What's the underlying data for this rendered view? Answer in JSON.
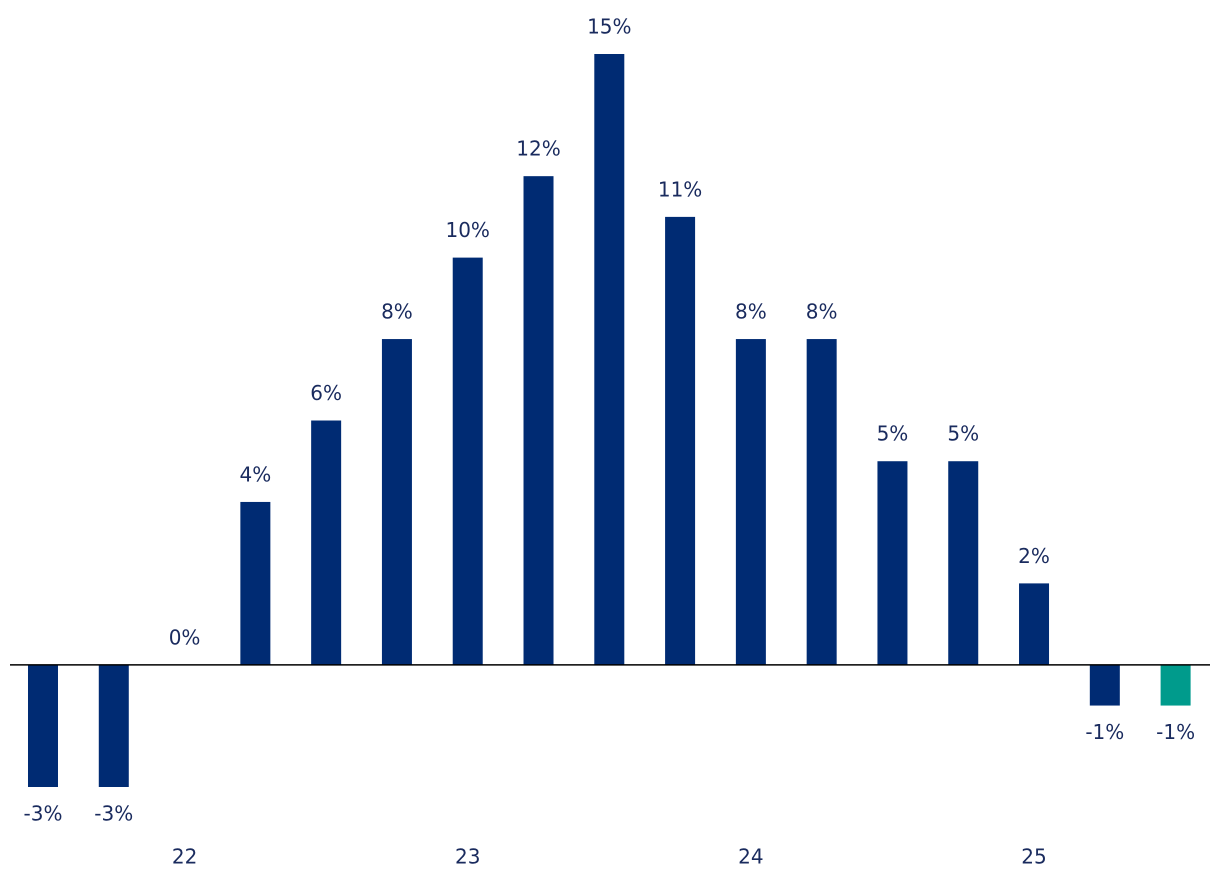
{
  "chart_data": {
    "type": "bar",
    "categories": [
      null,
      null,
      "22",
      null,
      null,
      null,
      "23",
      null,
      null,
      null,
      "24",
      null,
      null,
      null,
      "25",
      null,
      null
    ],
    "values": [
      -3,
      -3,
      0,
      4,
      6,
      8,
      10,
      12,
      15,
      11,
      8,
      8,
      5,
      5,
      2,
      -1,
      -1
    ],
    "value_labels": [
      "-3%",
      "-3%",
      "0%",
      "4%",
      "6%",
      "8%",
      "10%",
      "12%",
      "15%",
      "11%",
      "8%",
      "8%",
      "5%",
      "5%",
      "2%",
      "-1%",
      "-1%"
    ],
    "colors": [
      "#002b73",
      "#002b73",
      "#002b73",
      "#002b73",
      "#002b73",
      "#002b73",
      "#002b73",
      "#002b73",
      "#002b73",
      "#002b73",
      "#002b73",
      "#002b73",
      "#002b73",
      "#002b73",
      "#002b73",
      "#002b73",
      "#009b8c"
    ],
    "ylim": [
      -3,
      15
    ]
  }
}
